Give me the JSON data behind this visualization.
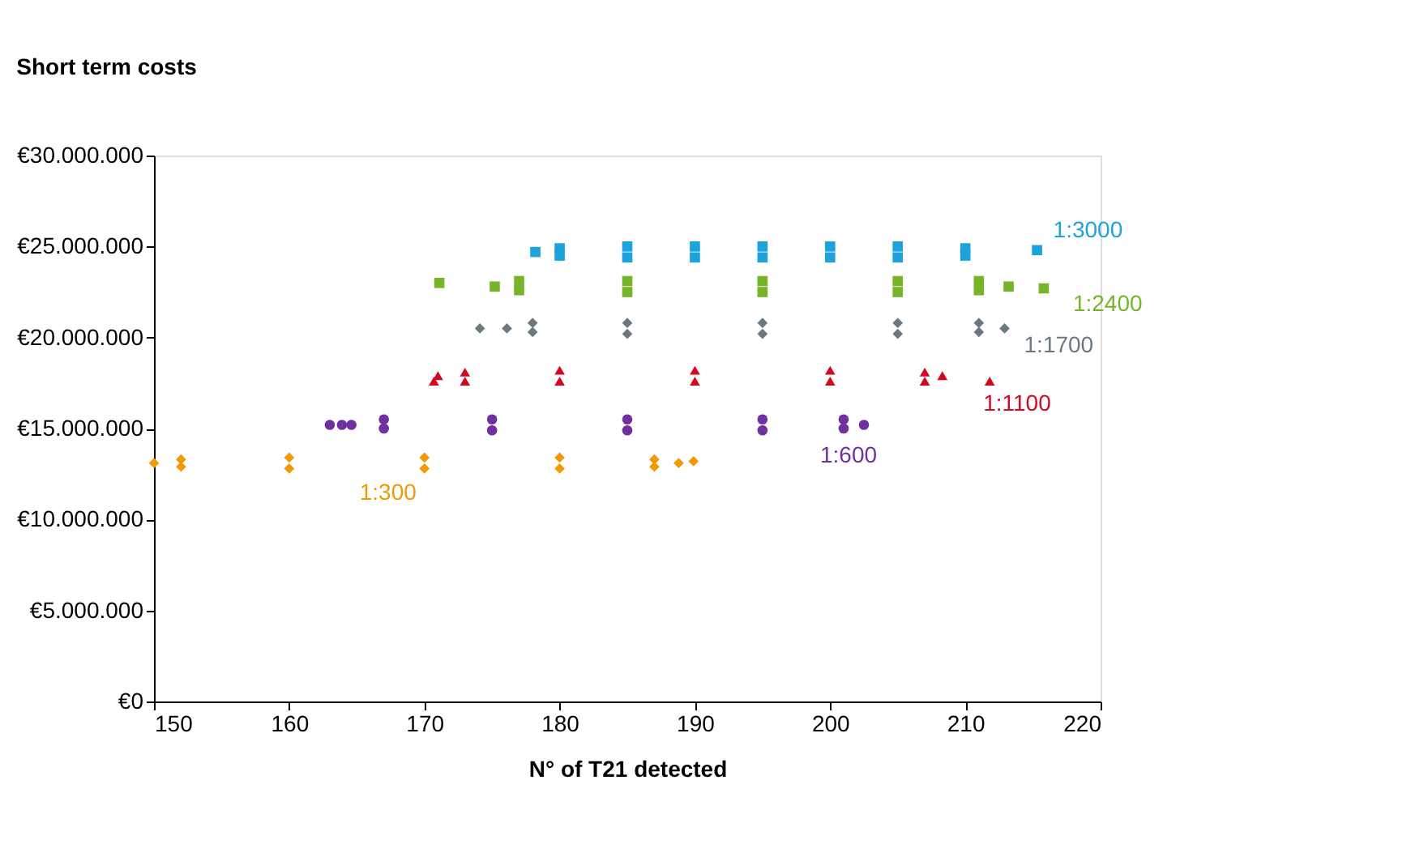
{
  "chart_data": {
    "type": "scatter",
    "title": "Short term costs",
    "xlabel": "N° of T21 detected",
    "xlim": [
      150,
      220
    ],
    "xticks": [
      150,
      160,
      170,
      180,
      190,
      200,
      210,
      220
    ],
    "ylim": [
      0,
      30000000
    ],
    "yticks": [
      {
        "value": 0,
        "label": "€0"
      },
      {
        "value": 5000000,
        "label": "€5.000.000"
      },
      {
        "value": 10000000,
        "label": "€10.000.000"
      },
      {
        "value": 15000000,
        "label": "€15.000.000"
      },
      {
        "value": 20000000,
        "label": "€20.000.000"
      },
      {
        "value": 25000000,
        "label": "€25.000.000"
      },
      {
        "value": 30000000,
        "label": "€30.000.000"
      }
    ],
    "grid": false,
    "series": [
      {
        "name": "1:3000",
        "color": "#1ea2dc",
        "marker": "square",
        "x": [
          178.2,
          180,
          180,
          185,
          185,
          190,
          190,
          195,
          195,
          200,
          200,
          205,
          205,
          210,
          210,
          215.3
        ],
        "values": [
          24700000,
          24500000,
          24900000,
          24400000,
          25000000,
          24400000,
          25000000,
          24400000,
          25000000,
          24400000,
          25000000,
          24400000,
          25000000,
          24500000,
          24900000,
          24800000
        ]
      },
      {
        "name": "1:2400",
        "color": "#78b42a",
        "marker": "square",
        "x": [
          171.1,
          175.2,
          177,
          177,
          185,
          185,
          195,
          195,
          205,
          205,
          211,
          211,
          213.2,
          215.8
        ],
        "values": [
          23000000,
          22800000,
          22600000,
          23100000,
          22500000,
          23100000,
          22500000,
          23100000,
          22500000,
          23100000,
          22600000,
          23100000,
          22800000,
          22700000
        ]
      },
      {
        "name": "1:1700",
        "color": "#6b7880",
        "marker": "diamond",
        "x": [
          174.1,
          176.1,
          178,
          178,
          185,
          185,
          195,
          195,
          205,
          205,
          211,
          211,
          212.9
        ],
        "values": [
          20500000,
          20500000,
          20300000,
          20800000,
          20200000,
          20800000,
          20200000,
          20800000,
          20200000,
          20800000,
          20300000,
          20800000,
          20500000
        ]
      },
      {
        "name": "1:1100",
        "color": "#d2081e",
        "marker": "triangle",
        "x": [
          170.7,
          171,
          173,
          173,
          180,
          180,
          190,
          190,
          200,
          200,
          207,
          207,
          208.3,
          211.8
        ],
        "values": [
          17600000,
          17900000,
          17600000,
          18100000,
          17600000,
          18200000,
          17600000,
          18200000,
          17600000,
          18200000,
          17600000,
          18100000,
          17900000,
          17600000
        ]
      },
      {
        "name": "1:600",
        "color": "#7030a0",
        "marker": "circle",
        "x": [
          163.0,
          163.9,
          164.6,
          167,
          167,
          175,
          175,
          185,
          185,
          195,
          195,
          201,
          201,
          202.5
        ],
        "values": [
          15200000,
          15200000,
          15200000,
          15000000,
          15500000,
          14900000,
          15500000,
          14900000,
          15500000,
          14900000,
          15500000,
          15000000,
          15500000,
          15200000
        ]
      },
      {
        "name": "1:300",
        "color": "#f29a06",
        "marker": "diamond",
        "x": [
          150,
          152,
          152,
          160,
          160,
          170,
          170,
          180,
          180,
          187,
          187,
          188.8,
          189.9
        ],
        "values": [
          13100000,
          12900000,
          13300000,
          12800000,
          13400000,
          12800000,
          13400000,
          12800000,
          13400000,
          12900000,
          13300000,
          13100000,
          13200000
        ]
      }
    ]
  }
}
